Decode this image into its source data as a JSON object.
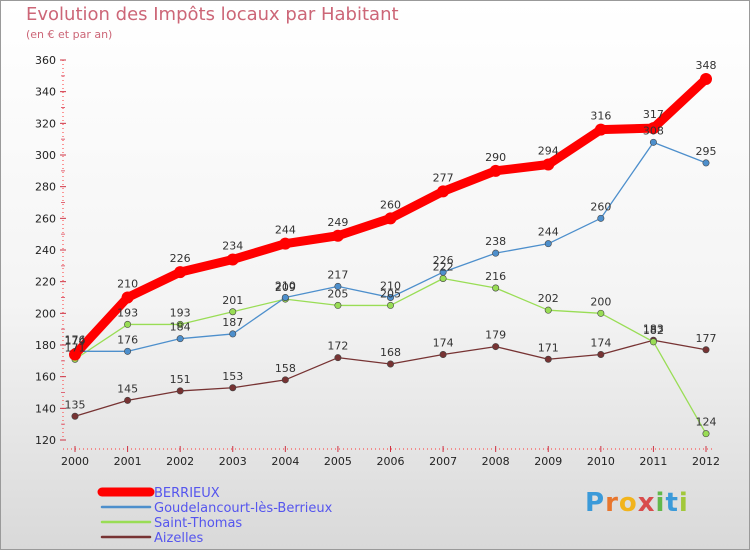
{
  "header": {
    "title": "Evolution des Impôts locaux par Habitant",
    "subtitle": "(en € et par an)"
  },
  "logo": {
    "text": "Proxiti",
    "letters": [
      "P",
      "r",
      "o",
      "x",
      "i",
      "t",
      "i"
    ],
    "colors": [
      "#3b9ad9",
      "#e8762d",
      "#f2b41c",
      "#d84c4c",
      "#62b84a",
      "#3b9ad9",
      "#a2c83a"
    ]
  },
  "chart_data": {
    "type": "line",
    "title": "Evolution des Impôts locaux par Habitant",
    "subtitle": "(en € et par an)",
    "x": [
      2000,
      2001,
      2002,
      2003,
      2004,
      2005,
      2006,
      2007,
      2008,
      2009,
      2010,
      2011,
      2012
    ],
    "ylim": [
      120,
      360
    ],
    "yticks": [
      120,
      140,
      160,
      180,
      200,
      220,
      240,
      260,
      280,
      300,
      320,
      340,
      360
    ],
    "grid": false,
    "legend_position": "bottom-left",
    "series": [
      {
        "name": "BERRIEUX",
        "color": "#ff0000",
        "values": [
          174,
          210,
          226,
          234,
          244,
          249,
          260,
          277,
          290,
          294,
          316,
          317,
          348
        ]
      },
      {
        "name": "Goudelancourt-lès-Berrieux",
        "color": "#4d8fcc",
        "values": [
          176,
          176,
          184,
          187,
          210,
          217,
          210,
          226,
          238,
          244,
          260,
          308,
          295
        ]
      },
      {
        "name": "Saint-Thomas",
        "color": "#99dd55",
        "values": [
          171,
          193,
          193,
          201,
          209,
          205,
          205,
          222,
          216,
          202,
          200,
          182,
          124
        ]
      },
      {
        "name": "Aizelles",
        "color": "#773333",
        "values": [
          135,
          145,
          151,
          153,
          158,
          172,
          168,
          174,
          179,
          171,
          174,
          183,
          177
        ]
      }
    ]
  }
}
